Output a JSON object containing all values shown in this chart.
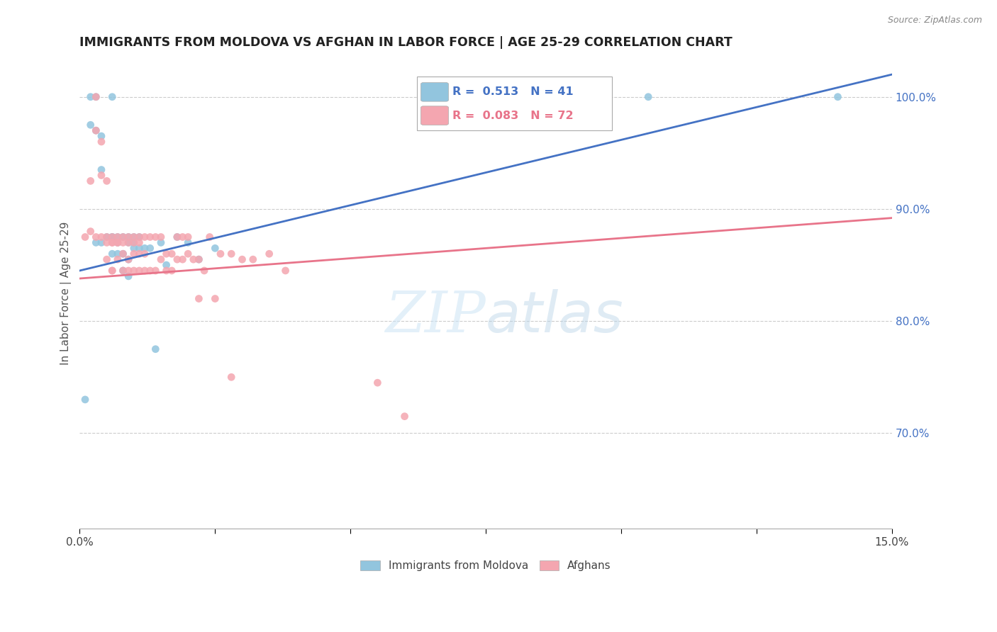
{
  "title": "IMMIGRANTS FROM MOLDOVA VS AFGHAN IN LABOR FORCE | AGE 25-29 CORRELATION CHART",
  "source": "Source: ZipAtlas.com",
  "ylabel": "In Labor Force | Age 25-29",
  "x_min": 0.0,
  "x_max": 0.15,
  "y_min": 0.615,
  "y_max": 1.035,
  "moldova_color": "#92c5de",
  "afghan_color": "#f4a6b0",
  "moldova_line_color": "#4472c4",
  "afghan_line_color": "#e8748a",
  "watermark_color": "#d0e8f5",
  "moldova_line_x0": 0.0,
  "moldova_line_y0": 0.845,
  "moldova_line_x1": 0.15,
  "moldova_line_y1": 1.02,
  "afghan_line_x0": 0.0,
  "afghan_line_y0": 0.838,
  "afghan_line_x1": 0.15,
  "afghan_line_y1": 0.892,
  "moldova_x": [
    0.001,
    0.002,
    0.002,
    0.003,
    0.003,
    0.004,
    0.004,
    0.005,
    0.006,
    0.006,
    0.006,
    0.007,
    0.007,
    0.008,
    0.008,
    0.008,
    0.009,
    0.009,
    0.009,
    0.01,
    0.01,
    0.011,
    0.011,
    0.012,
    0.013,
    0.014,
    0.015,
    0.016,
    0.018,
    0.02,
    0.022,
    0.025,
    0.003,
    0.004,
    0.006,
    0.007,
    0.009,
    0.01,
    0.095,
    0.105,
    0.14
  ],
  "moldova_y": [
    0.73,
    1.0,
    0.975,
    1.0,
    0.97,
    0.965,
    0.935,
    0.875,
    1.0,
    0.875,
    0.86,
    0.875,
    0.86,
    0.875,
    0.86,
    0.845,
    0.875,
    0.87,
    0.84,
    0.875,
    0.87,
    0.875,
    0.865,
    0.865,
    0.865,
    0.775,
    0.87,
    0.85,
    0.875,
    0.87,
    0.855,
    0.865,
    0.87,
    0.87,
    0.875,
    0.87,
    0.855,
    0.865,
    1.0,
    1.0,
    1.0
  ],
  "afghan_x": [
    0.001,
    0.002,
    0.002,
    0.003,
    0.003,
    0.004,
    0.004,
    0.005,
    0.005,
    0.006,
    0.006,
    0.006,
    0.007,
    0.007,
    0.008,
    0.008,
    0.009,
    0.009,
    0.01,
    0.01,
    0.011,
    0.011,
    0.012,
    0.012,
    0.013,
    0.014,
    0.015,
    0.016,
    0.017,
    0.018,
    0.019,
    0.02,
    0.021,
    0.022,
    0.023,
    0.024,
    0.026,
    0.028,
    0.03,
    0.032,
    0.035,
    0.038,
    0.005,
    0.006,
    0.007,
    0.008,
    0.009,
    0.01,
    0.011,
    0.012,
    0.013,
    0.014,
    0.015,
    0.016,
    0.017,
    0.018,
    0.019,
    0.02,
    0.022,
    0.025,
    0.028,
    0.055,
    0.06,
    0.003,
    0.004,
    0.005,
    0.006,
    0.007,
    0.008,
    0.009,
    0.01,
    0.011
  ],
  "afghan_y": [
    0.875,
    0.925,
    0.88,
    1.0,
    0.97,
    0.96,
    0.93,
    0.875,
    0.925,
    0.875,
    0.87,
    0.845,
    0.875,
    0.87,
    0.875,
    0.86,
    0.875,
    0.845,
    0.875,
    0.86,
    0.875,
    0.86,
    0.875,
    0.86,
    0.875,
    0.875,
    0.875,
    0.86,
    0.86,
    0.875,
    0.875,
    0.86,
    0.855,
    0.855,
    0.845,
    0.875,
    0.86,
    0.86,
    0.855,
    0.855,
    0.86,
    0.845,
    0.855,
    0.845,
    0.855,
    0.845,
    0.855,
    0.845,
    0.845,
    0.845,
    0.845,
    0.845,
    0.855,
    0.845,
    0.845,
    0.855,
    0.855,
    0.875,
    0.82,
    0.82,
    0.75,
    0.745,
    0.715,
    0.875,
    0.875,
    0.87,
    0.87,
    0.87,
    0.87,
    0.87,
    0.87,
    0.87
  ]
}
